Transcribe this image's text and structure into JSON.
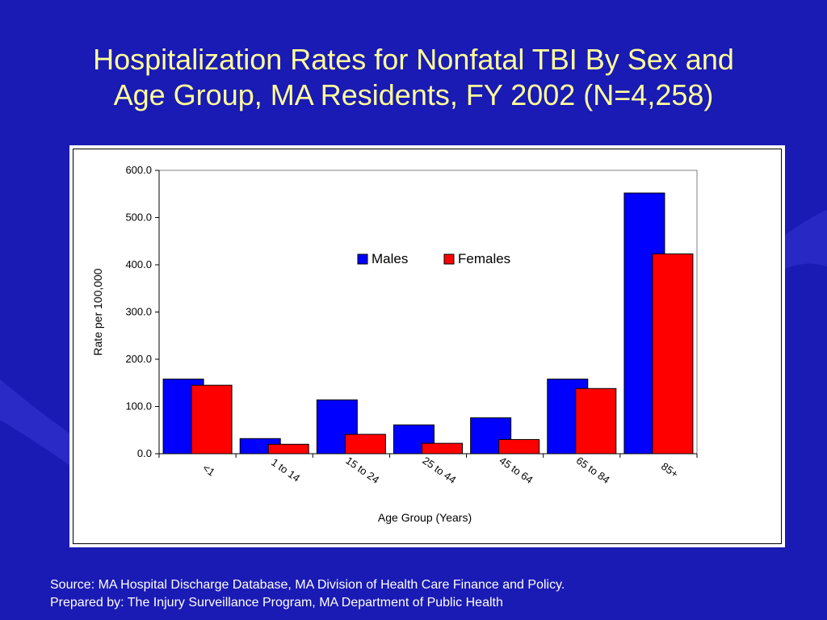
{
  "slide": {
    "title_line1": "Hospitalization Rates for Nonfatal TBI By Sex and",
    "title_line2": "Age Group, MA Residents, FY 2002 (N=4,258)",
    "footer_line1": "Source:  MA Hospital Discharge Database, MA Division of Health Care Finance and Policy.",
    "footer_line2": "Prepared by: The Injury Surveillance Program, MA Department of Public Health",
    "colors": {
      "background": "#1a1ab4",
      "title": "#ffff99",
      "footer": "#ffffff",
      "males": "#0000ff",
      "females": "#ff0000"
    }
  },
  "chart_data": {
    "type": "bar",
    "categories": [
      "<1",
      "1 to 14",
      "15 to 24",
      "25 to 44",
      "45 to 64",
      "65 to 84",
      "85+"
    ],
    "series": [
      {
        "name": "Males",
        "color": "#0000ff",
        "values": [
          158.0,
          32.0,
          114.0,
          61.0,
          76.0,
          158.0,
          552.0
        ]
      },
      {
        "name": "Females",
        "color": "#ff0000",
        "values": [
          145.0,
          20.0,
          41.0,
          22.0,
          30.0,
          138.0,
          423.0
        ]
      }
    ],
    "xlabel": "Age Group (Years)",
    "ylabel": "Rate per 100,000",
    "ylim": [
      0,
      600
    ],
    "yticks": [
      "0.0",
      "100.0",
      "200.0",
      "300.0",
      "400.0",
      "500.0",
      "600.0"
    ],
    "legend": "top-center",
    "grid": false
  }
}
